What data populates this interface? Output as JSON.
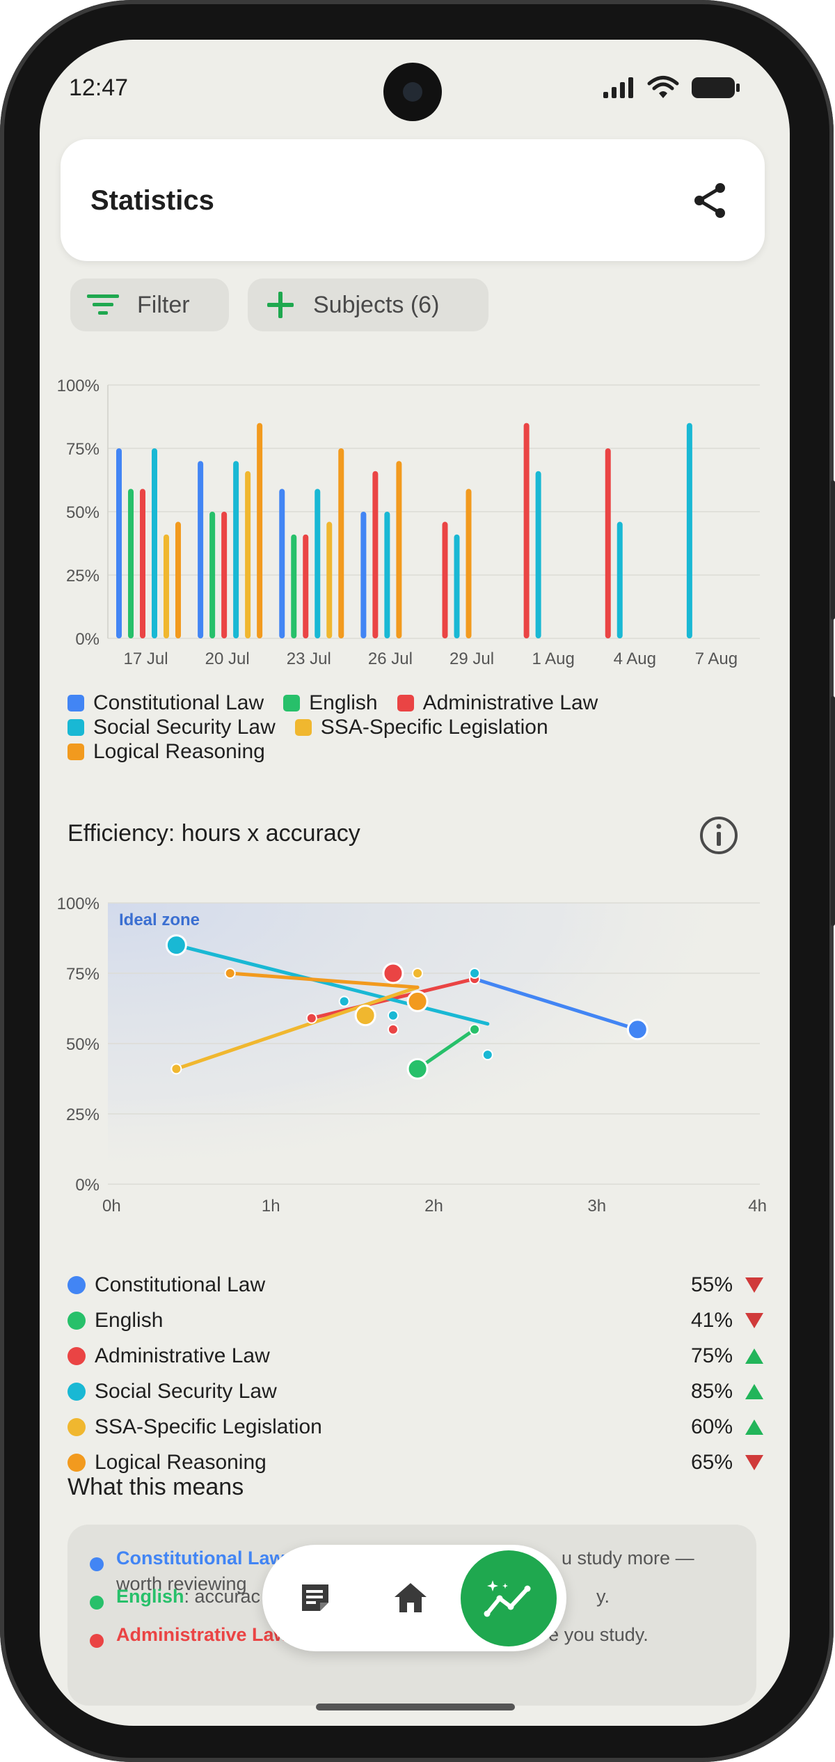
{
  "status": {
    "time": "12:47"
  },
  "app_bar": {
    "title": "Statistics"
  },
  "chips": {
    "filter": "Filter",
    "subjects": "Subjects (6)"
  },
  "colors": {
    "constitutional": "#4285f4",
    "english": "#27c06a",
    "administrative": "#ea4444",
    "social_security": "#19b8d4",
    "ssa_specific": "#f0b72f",
    "logical": "#f29a1e",
    "accent": "#1fa84f"
  },
  "chart_data": [
    {
      "type": "bar",
      "categories": [
        "17 Jul",
        "20 Jul",
        "23 Jul",
        "26 Jul",
        "29 Jul",
        "1 Aug",
        "4 Aug",
        "7 Aug"
      ],
      "y_ticks": [
        "100%",
        "75%",
        "50%",
        "25%",
        "0%"
      ],
      "ylim": [
        0,
        100
      ],
      "grid": true,
      "series": [
        {
          "name": "Constitutional Law",
          "color": "#4285f4",
          "values": [
            75,
            70,
            59,
            50,
            null,
            null,
            null,
            null
          ]
        },
        {
          "name": "English",
          "color": "#27c06a",
          "values": [
            59,
            50,
            41,
            null,
            null,
            null,
            null,
            null
          ]
        },
        {
          "name": "Administrative Law",
          "color": "#ea4444",
          "values": [
            59,
            50,
            41,
            66,
            46,
            85,
            75,
            null
          ]
        },
        {
          "name": "Social Security Law",
          "color": "#19b8d4",
          "values": [
            75,
            70,
            59,
            50,
            41,
            66,
            46,
            85
          ]
        },
        {
          "name": "SSA-Specific Legislation",
          "color": "#f0b72f",
          "values": [
            41,
            66,
            46,
            null,
            null,
            null,
            null,
            null
          ]
        },
        {
          "name": "Logical Reasoning",
          "color": "#f29a1e",
          "values": [
            46,
            85,
            75,
            70,
            59,
            null,
            null,
            null
          ]
        }
      ],
      "legend": [
        "Constitutional Law",
        "English",
        "Administrative Law",
        "Social Security Law",
        "SSA-Specific Legislation",
        "Logical Reasoning"
      ]
    },
    {
      "type": "scatter",
      "title": "Efficiency: hours x accuracy",
      "x_ticks": [
        "0h",
        "1h",
        "2h",
        "3h",
        "4h"
      ],
      "y_ticks": [
        "100%",
        "75%",
        "50%",
        "25%",
        "0%"
      ],
      "xlim": [
        0,
        4
      ],
      "ylim": [
        0,
        100
      ],
      "annotation": "Ideal zone",
      "series": [
        {
          "name": "Constitutional Law",
          "color": "#4285f4",
          "points": [
            [
              2.25,
              73
            ],
            [
              3.25,
              55
            ]
          ]
        },
        {
          "name": "English",
          "color": "#27c06a",
          "points": [
            [
              2.25,
              55
            ],
            [
              1.9,
              41
            ]
          ]
        },
        {
          "name": "Administrative Law",
          "color": "#ea4444",
          "points": [
            [
              1.25,
              59
            ],
            [
              2.25,
              73
            ],
            [
              1.75,
              75
            ],
            [
              1.75,
              55
            ]
          ]
        },
        {
          "name": "Social Security Law",
          "color": "#19b8d4",
          "points": [
            [
              0.42,
              85
            ],
            [
              1.45,
              65
            ],
            [
              1.75,
              60
            ],
            [
              2.25,
              75
            ],
            [
              2.33,
              46
            ]
          ]
        },
        {
          "name": "SSA-Specific Legislation",
          "color": "#f0b72f",
          "points": [
            [
              0.42,
              41
            ],
            [
              1.58,
              60
            ],
            [
              1.9,
              75
            ]
          ]
        },
        {
          "name": "Logical Reasoning",
          "color": "#f29a1e",
          "points": [
            [
              0.75,
              75
            ],
            [
              1.9,
              65
            ]
          ]
        }
      ],
      "trend_lines": [
        {
          "color": "#4285f4",
          "from": [
            2.25,
            73
          ],
          "to": [
            3.25,
            55
          ]
        },
        {
          "color": "#27c06a",
          "from": [
            1.9,
            41
          ],
          "to": [
            2.25,
            55
          ]
        },
        {
          "color": "#ea4444",
          "from": [
            1.25,
            59
          ],
          "to": [
            2.25,
            73
          ]
        },
        {
          "color": "#19b8d4",
          "from": [
            0.42,
            85
          ],
          "to": [
            2.33,
            57
          ]
        },
        {
          "color": "#f0b72f",
          "from": [
            0.42,
            41
          ],
          "to": [
            1.9,
            70
          ]
        },
        {
          "color": "#f29a1e",
          "from": [
            0.75,
            75
          ],
          "to": [
            1.9,
            70
          ]
        }
      ]
    }
  ],
  "efficiency": {
    "title": "Efficiency: hours x accuracy",
    "rows": [
      {
        "name": "Constitutional Law",
        "value": "55%",
        "trend": "down",
        "color": "#4285f4"
      },
      {
        "name": "English",
        "value": "41%",
        "trend": "down",
        "color": "#27c06a"
      },
      {
        "name": "Administrative Law",
        "value": "75%",
        "trend": "up",
        "color": "#ea4444"
      },
      {
        "name": "Social Security Law",
        "value": "85%",
        "trend": "up",
        "color": "#19b8d4"
      },
      {
        "name": "SSA-Specific Legislation",
        "value": "60%",
        "trend": "up",
        "color": "#f0b72f"
      },
      {
        "name": "Logical Reasoning",
        "value": "65%",
        "trend": "down",
        "color": "#f29a1e"
      }
    ]
  },
  "means": {
    "title": "What this means",
    "items": [
      {
        "subject": "Constitutional Law",
        "text_a": "",
        "text_b": "u study more —",
        "text_c": "worth reviewing",
        "color": "#4285f4"
      },
      {
        "subject": "English",
        "text_a": ": accurac",
        "text_b": "y.",
        "color": "#27c06a"
      },
      {
        "subject": "Administrative Law",
        "text_a": ": accuracy is improving the more you study.",
        "color": "#ea4444"
      }
    ]
  },
  "nav": {
    "items": [
      "notes-icon",
      "home-icon",
      "stats-icon"
    ]
  }
}
